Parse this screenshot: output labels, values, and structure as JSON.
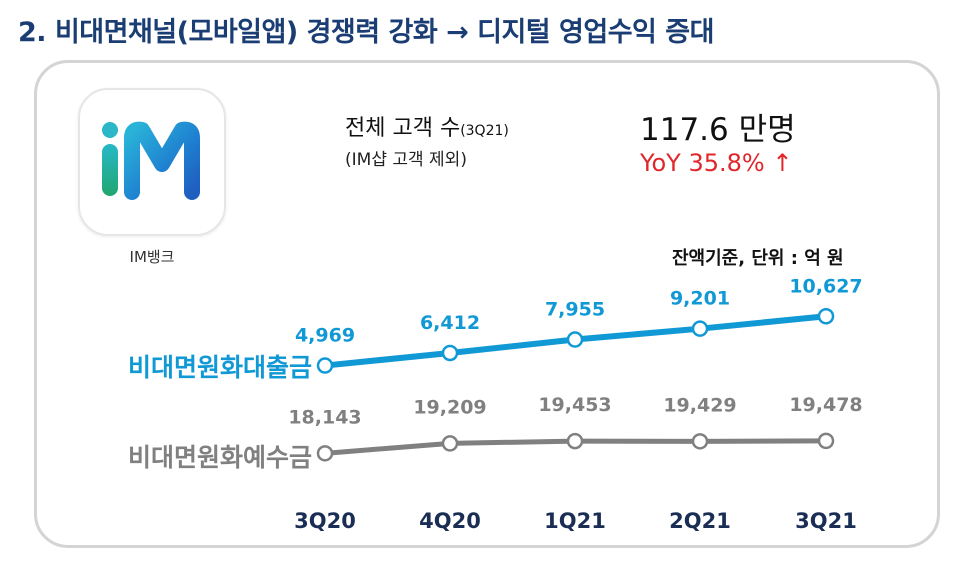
{
  "title": "2. 비대면채널(모바일앱) 경쟁력 강화 → 디지털 영업수익 증대",
  "app": {
    "name": "IM뱅크",
    "logo_text": "iM"
  },
  "customers": {
    "label": "전체 고객 수",
    "period": "(3Q21)",
    "note": "(IM샵 고객 제외)",
    "value": "117.6 만명",
    "yoy": "YoY 35.8%",
    "yoy_arrow": "↑"
  },
  "unit_note": "잔액기준, 단위 : 억 원",
  "colors": {
    "loans": "#1199d6",
    "deposits": "#808080",
    "title": "#1a3d73",
    "yoy": "#e0262a"
  },
  "chart_data": {
    "type": "line",
    "categories": [
      "3Q20",
      "4Q20",
      "1Q21",
      "2Q21",
      "3Q21"
    ],
    "series": [
      {
        "name": "비대면원화대출금",
        "values": [
          4969,
          6412,
          7955,
          9201,
          10627
        ],
        "labels": [
          "4,969",
          "6,412",
          "7,955",
          "9,201",
          "10,627"
        ]
      },
      {
        "name": "비대면원화예수금",
        "values": [
          18143,
          19209,
          19453,
          19429,
          19478
        ],
        "labels": [
          "18,143",
          "19,209",
          "19,453",
          "19,429",
          "19,478"
        ]
      }
    ],
    "grid": false,
    "legend": "left inline series labels"
  }
}
